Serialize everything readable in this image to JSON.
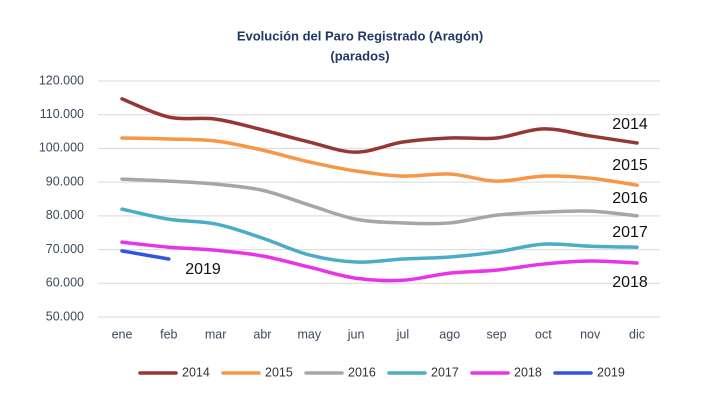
{
  "chart_data": {
    "type": "line",
    "title": "Evolución del Paro Registrado (Aragón)",
    "subtitle": "(parados)",
    "categories": [
      "ene",
      "feb",
      "mar",
      "abr",
      "may",
      "jun",
      "jul",
      "ago",
      "sep",
      "oct",
      "nov",
      "dic"
    ],
    "series": [
      {
        "name": "2014",
        "color": "#953735",
        "values": [
          114700,
          109300,
          108700,
          105500,
          101900,
          98900,
          101900,
          103100,
          103100,
          105800,
          103700,
          101600
        ]
      },
      {
        "name": "2015",
        "color": "#f79646",
        "values": [
          103100,
          102800,
          102200,
          99500,
          96000,
          93300,
          91800,
          92400,
          90300,
          91800,
          91200,
          89100
        ]
      },
      {
        "name": "2016",
        "color": "#a6a6a6",
        "values": [
          90900,
          90300,
          89400,
          87600,
          83200,
          79000,
          77900,
          77900,
          80200,
          81100,
          81400,
          80000
        ]
      },
      {
        "name": "2017",
        "color": "#4bacc6",
        "values": [
          82000,
          79000,
          77600,
          73400,
          68400,
          66300,
          67200,
          67800,
          69300,
          71600,
          71000,
          70700
        ]
      },
      {
        "name": "2018",
        "color": "#e933e9",
        "values": [
          72200,
          70700,
          69800,
          68100,
          64800,
          61500,
          60900,
          63000,
          63900,
          65700,
          66600,
          66000
        ]
      },
      {
        "name": "2019",
        "color": "#3355dd",
        "values": [
          69600,
          67200,
          null,
          null,
          null,
          null,
          null,
          null,
          null,
          null,
          null,
          null
        ]
      }
    ],
    "annotations": [
      "2014",
      "2015",
      "2016",
      "2017",
      "2018",
      "2019"
    ],
    "ylim": [
      50000,
      120000
    ],
    "yticks": [
      {
        "value": 50000,
        "label": "50.000"
      },
      {
        "value": 60000,
        "label": "60.000"
      },
      {
        "value": 70000,
        "label": "70.000"
      },
      {
        "value": 80000,
        "label": "80.000"
      },
      {
        "value": 90000,
        "label": "90.000"
      },
      {
        "value": 100000,
        "label": "100.000"
      },
      {
        "value": 110000,
        "label": "110.000"
      },
      {
        "value": 120000,
        "label": "120.000"
      }
    ],
    "grid": true,
    "legend": "bottom"
  }
}
